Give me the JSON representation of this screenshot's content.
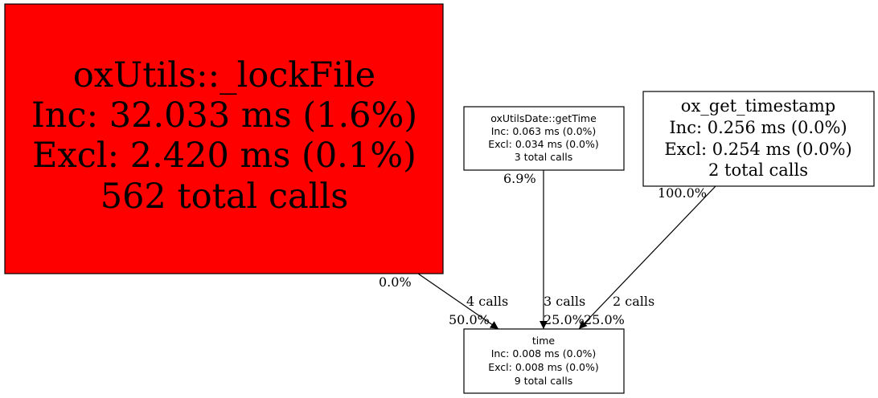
{
  "colors": {
    "hot_node": "#ff0000",
    "node": "#ffffff",
    "stroke": "#000000",
    "edge": "#000000"
  },
  "nodes": {
    "lockfile": {
      "name": "oxUtils::_lockFile",
      "inc": "Inc: 32.033 ms (1.6%)",
      "excl": "Excl: 2.420 ms (0.1%)",
      "calls": "562 total calls"
    },
    "gettime": {
      "name": "oxUtilsDate::getTime",
      "inc": "Inc: 0.063 ms (0.0%)",
      "excl": "Excl: 0.034 ms (0.0%)",
      "calls": "3 total calls"
    },
    "timestamp": {
      "name": "ox_get_timestamp",
      "inc": "Inc: 0.256 ms (0.0%)",
      "excl": "Excl: 0.254 ms (0.0%)",
      "calls": "2 total calls"
    },
    "time": {
      "name": "time",
      "inc": "Inc: 0.008 ms (0.0%)",
      "excl": "Excl: 0.008 ms (0.0%)",
      "calls": "9 total calls"
    }
  },
  "edges": {
    "lockfile_time": {
      "tail_pct": "0.0%",
      "calls": "4 calls",
      "head_pct": "50.0%"
    },
    "gettime_time": {
      "tail_pct": "6.9%",
      "calls": "3 calls",
      "head_pct": "25.0%"
    },
    "timestamp_time": {
      "tail_pct": "100.0%",
      "calls": "2 calls",
      "head_pct": "25.0%"
    }
  }
}
